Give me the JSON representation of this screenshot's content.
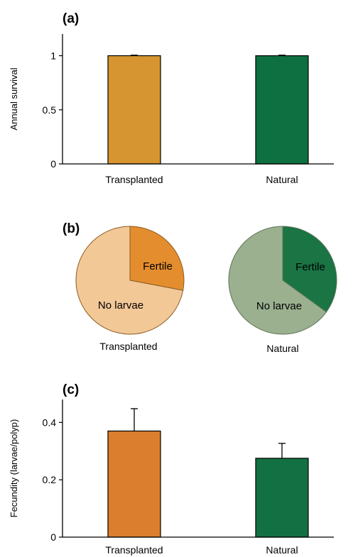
{
  "chart_data": [
    {
      "type": "bar",
      "panel_label": "(a)",
      "ylabel": "Annual  survival",
      "categories": [
        "Transplanted",
        "Natural"
      ],
      "values": [
        1.0,
        1.0
      ],
      "errors": [
        0.005,
        0.005
      ],
      "ylim": [
        0,
        1.2
      ],
      "yticks": [
        "0",
        "0.5",
        "1"
      ],
      "ytick_values": [
        0,
        0.5,
        1
      ],
      "colors": [
        "#D69530",
        "#0E7040"
      ]
    },
    {
      "type": "pie",
      "panel_label": "(b)",
      "pies": [
        {
          "name": "Transplanted",
          "slices": [
            {
              "label": "Fertile",
              "value": 0.28,
              "color": "#E48D2E"
            },
            {
              "label": "No larvae",
              "value": 0.72,
              "color": "#F2C897"
            }
          ]
        },
        {
          "name": "Natural",
          "slices": [
            {
              "label": "Fertile",
              "value": 0.35,
              "color": "#1A7444"
            },
            {
              "label": "No larvae",
              "value": 0.65,
              "color": "#9AB08F"
            }
          ]
        }
      ]
    },
    {
      "type": "bar",
      "panel_label": "(c)",
      "ylabel": "Fecundity (larvae/polyp)",
      "categories": [
        "Transplanted",
        "Natural"
      ],
      "values": [
        0.37,
        0.275
      ],
      "errors": [
        0.078,
        0.052
      ],
      "ylim": [
        0,
        0.48
      ],
      "yticks": [
        "0",
        "0.2",
        "0.4"
      ],
      "ytick_values": [
        0,
        0.2,
        0.4
      ],
      "colors": [
        "#DB7E2E",
        "#137042"
      ]
    }
  ]
}
